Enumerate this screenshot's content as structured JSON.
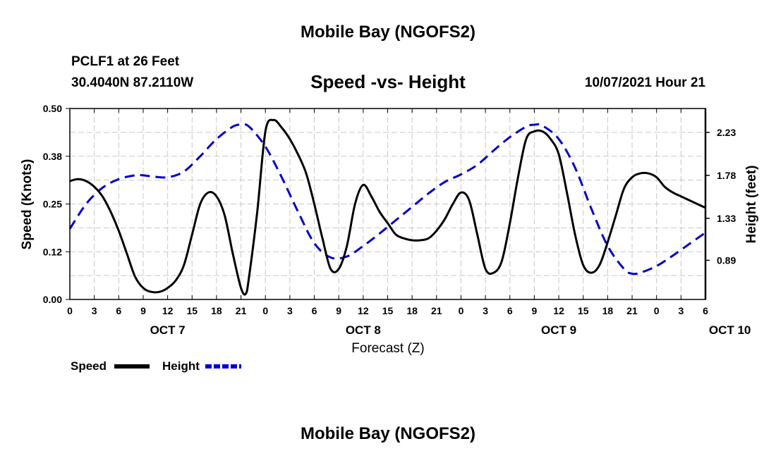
{
  "header": {
    "title": "Mobile Bay (NGOFS2)",
    "station": "PCLF1 at 26 Feet",
    "coords": "30.4040N  87.2110W",
    "subtitle": "Speed -vs- Height",
    "datetime": "10/07/2021 Hour 21"
  },
  "footer": {
    "title": "Mobile Bay (NGOFS2)"
  },
  "legend": {
    "speed_label": "Speed",
    "height_label": "Height"
  },
  "colors": {
    "speed": "#000000",
    "height": "#0000cc",
    "grid": "#c8c8c8"
  },
  "chart_data": {
    "type": "line",
    "xlabel": "Forecast (Z)",
    "ylabel_left": "Speed (Knots)",
    "ylabel_right": "Height (feet)",
    "grid": true,
    "legend_position": "bottom-left",
    "x_ticks": [
      "0",
      "3",
      "6",
      "9",
      "12",
      "15",
      "18",
      "21",
      "0",
      "3",
      "6",
      "9",
      "12",
      "15",
      "18",
      "21",
      "0",
      "3",
      "6",
      "9",
      "12",
      "15",
      "18",
      "21",
      "0",
      "3",
      "6"
    ],
    "x_day_labels": [
      {
        "label": "OCT 7",
        "hour": 12
      },
      {
        "label": "OCT 8",
        "hour": 36
      },
      {
        "label": "OCT 9",
        "hour": 60
      },
      {
        "label": "OCT 10",
        "hour": 81
      }
    ],
    "x_range_hours": [
      0,
      78
    ],
    "y_left": {
      "range": [
        0,
        0.5
      ],
      "ticks": [
        "0.00",
        "0.12",
        "0.25",
        "0.38",
        "0.50"
      ]
    },
    "y_right": {
      "range": [
        0.48,
        2.48
      ],
      "ticks": [
        {
          "label": "0.89",
          "value": 0.89
        },
        {
          "label": "1.33",
          "value": 1.33
        },
        {
          "label": "1.78",
          "value": 1.78
        },
        {
          "label": "2.23",
          "value": 2.23
        }
      ]
    },
    "series": [
      {
        "name": "Speed",
        "axis": "left",
        "hours": [
          0,
          1,
          2,
          3,
          4,
          5,
          6,
          7,
          8,
          9,
          10,
          11,
          12,
          13,
          14,
          15,
          16,
          17,
          18,
          19,
          20,
          21,
          21.6,
          22,
          23,
          24,
          25,
          26,
          27,
          28,
          29,
          30,
          31,
          32,
          33,
          34,
          35,
          36,
          37,
          38,
          39,
          40,
          41,
          42,
          43,
          44,
          45,
          46,
          47,
          48,
          49,
          50,
          51,
          52,
          53,
          54,
          55,
          56,
          57,
          58,
          59,
          60,
          61,
          62,
          63,
          64,
          65,
          66,
          67,
          68,
          69,
          70,
          71,
          72,
          73,
          74,
          75,
          76,
          77,
          78
        ],
        "values": [
          0.31,
          0.315,
          0.31,
          0.295,
          0.27,
          0.23,
          0.18,
          0.12,
          0.06,
          0.03,
          0.02,
          0.02,
          0.03,
          0.05,
          0.09,
          0.17,
          0.25,
          0.28,
          0.27,
          0.22,
          0.12,
          0.03,
          0.015,
          0.06,
          0.23,
          0.44,
          0.47,
          0.45,
          0.42,
          0.38,
          0.33,
          0.25,
          0.16,
          0.08,
          0.08,
          0.14,
          0.25,
          0.3,
          0.27,
          0.23,
          0.2,
          0.17,
          0.16,
          0.155,
          0.155,
          0.16,
          0.18,
          0.21,
          0.25,
          0.28,
          0.26,
          0.17,
          0.08,
          0.07,
          0.1,
          0.2,
          0.32,
          0.42,
          0.44,
          0.44,
          0.42,
          0.38,
          0.28,
          0.17,
          0.09,
          0.07,
          0.09,
          0.15,
          0.22,
          0.29,
          0.32,
          0.33,
          0.33,
          0.32,
          0.295,
          0.28,
          0.27,
          0.26,
          0.25,
          0.24
        ]
      },
      {
        "name": "Height",
        "axis": "right",
        "hours": [
          0,
          2,
          4,
          6,
          8,
          9,
          10,
          12,
          14,
          16,
          18,
          20,
          21,
          22,
          24,
          26,
          28,
          30,
          32,
          34,
          36,
          38,
          40,
          42,
          44,
          46,
          48,
          50,
          52,
          54,
          56,
          57,
          58,
          60,
          62,
          64,
          66,
          68,
          69,
          70,
          72,
          74,
          76,
          78
        ],
        "values": [
          1.22,
          1.48,
          1.65,
          1.74,
          1.78,
          1.78,
          1.77,
          1.76,
          1.82,
          1.98,
          2.16,
          2.29,
          2.31,
          2.29,
          2.08,
          1.76,
          1.4,
          1.07,
          0.92,
          0.93,
          1.04,
          1.17,
          1.31,
          1.45,
          1.59,
          1.71,
          1.79,
          1.89,
          2.04,
          2.18,
          2.29,
          2.31,
          2.3,
          2.16,
          1.86,
          1.43,
          1.04,
          0.8,
          0.75,
          0.76,
          0.83,
          0.94,
          1.06,
          1.18
        ]
      }
    ]
  }
}
